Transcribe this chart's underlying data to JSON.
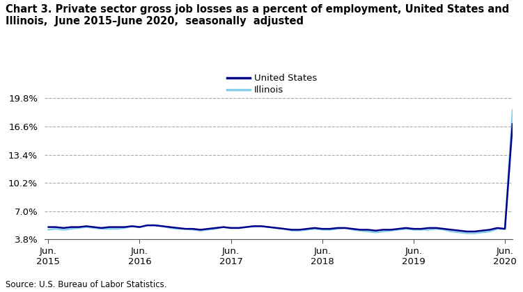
{
  "title_line1": "Chart 3. Private sector gross job losses as a percent of employment, United States and",
  "title_line2": "Illinois,  June 2015–June 2020,  seasonally  adjusted",
  "source": "Source: U.S. Bureau of Labor Statistics.",
  "us_label": "United States",
  "il_label": "Illinois",
  "us_color": "#00008B",
  "il_color": "#87CEEB",
  "ylim": [
    3.8,
    21.0
  ],
  "yticks": [
    3.8,
    7.0,
    10.2,
    13.4,
    16.6,
    19.8
  ],
  "ytick_labels": [
    "3.8%",
    "7.0%",
    "10.2%",
    "13.4%",
    "16.6%",
    "19.8%"
  ],
  "xtick_labels": [
    "Jun.\n2015",
    "Jun.\n2016",
    "Jun.\n2017",
    "Jun.\n2018",
    "Jun.\n2019",
    "Jun.\n2020"
  ],
  "xtick_positions": [
    0,
    12,
    24,
    36,
    48,
    60
  ],
  "us_data": [
    5.2,
    5.2,
    5.1,
    5.2,
    5.2,
    5.3,
    5.2,
    5.1,
    5.2,
    5.2,
    5.2,
    5.3,
    5.2,
    5.4,
    5.4,
    5.3,
    5.2,
    5.1,
    5.0,
    5.0,
    4.9,
    5.0,
    5.1,
    5.2,
    5.1,
    5.1,
    5.2,
    5.3,
    5.3,
    5.2,
    5.1,
    5.0,
    4.9,
    4.9,
    5.0,
    5.1,
    5.0,
    5.0,
    5.1,
    5.1,
    5.0,
    4.9,
    4.9,
    4.8,
    4.9,
    4.9,
    5.0,
    5.1,
    5.0,
    5.0,
    5.1,
    5.1,
    5.0,
    4.9,
    4.8,
    4.7,
    4.7,
    4.8,
    4.9,
    5.1,
    5.0,
    16.9
  ],
  "il_data": [
    4.9,
    5.0,
    4.9,
    5.0,
    5.1,
    5.2,
    5.1,
    5.0,
    5.0,
    5.0,
    5.1,
    5.3,
    5.2,
    5.4,
    5.4,
    5.3,
    5.1,
    5.0,
    5.0,
    4.9,
    4.8,
    4.9,
    5.0,
    5.2,
    5.1,
    5.1,
    5.2,
    5.3,
    5.3,
    5.2,
    5.1,
    5.0,
    4.8,
    4.8,
    4.9,
    5.0,
    4.9,
    4.9,
    5.0,
    5.1,
    4.9,
    4.8,
    4.7,
    4.6,
    4.7,
    4.8,
    4.9,
    5.0,
    4.9,
    4.9,
    4.9,
    5.0,
    4.9,
    4.7,
    4.6,
    4.5,
    4.5,
    4.6,
    4.7,
    5.0,
    5.0,
    18.5
  ],
  "linewidth": 1.8,
  "title_fontsize": 10.5,
  "tick_fontsize": 9.5
}
